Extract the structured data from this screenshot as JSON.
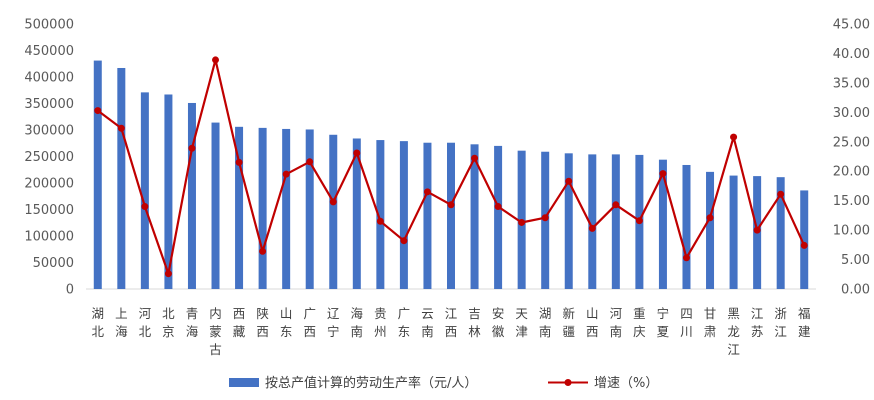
{
  "chart_data": {
    "type": "bar",
    "categories": [
      "湖北",
      "上海",
      "河北",
      "北京",
      "青海",
      "内蒙古",
      "西藏",
      "陕西",
      "山东",
      "广西",
      "辽宁",
      "海南",
      "贵州",
      "广东",
      "云南",
      "江西",
      "吉林",
      "安徽",
      "天津",
      "湖南",
      "新疆",
      "山西",
      "河南",
      "重庆",
      "宁夏",
      "四川",
      "甘肃",
      "黑龙江",
      "江苏",
      "浙江",
      "福建"
    ],
    "series": [
      {
        "name": "按总产值计算的劳动生产率（元/人）",
        "kind": "bar",
        "axis": "left",
        "color": "#4472C4",
        "values": [
          431000,
          417000,
          371000,
          367000,
          351000,
          314000,
          306000,
          304000,
          302000,
          301000,
          291000,
          284000,
          281000,
          279000,
          276000,
          276000,
          273000,
          270000,
          261000,
          259000,
          256000,
          254000,
          254000,
          253000,
          244000,
          234000,
          221000,
          214000,
          213000,
          211000,
          186000
        ]
      },
      {
        "name": "增速（%）",
        "kind": "line",
        "axis": "right",
        "color": "#C00000",
        "values": [
          30.3,
          27.3,
          14.0,
          2.6,
          23.9,
          38.9,
          21.5,
          6.4,
          19.5,
          21.6,
          14.8,
          23.1,
          11.5,
          8.2,
          16.5,
          14.3,
          22.2,
          14.0,
          11.3,
          12.1,
          18.3,
          10.3,
          14.3,
          11.6,
          19.6,
          5.3,
          12.1,
          25.8,
          10.0,
          16.1,
          7.4
        ]
      }
    ],
    "y_left": {
      "ylim": [
        0,
        500000
      ],
      "ticks": [
        "0",
        "50000",
        "100000",
        "150000",
        "200000",
        "250000",
        "300000",
        "350000",
        "400000",
        "450000",
        "500000"
      ]
    },
    "y_right": {
      "ylim": [
        0,
        45
      ],
      "ticks": [
        "0.00",
        "5.00",
        "10.00",
        "15.00",
        "20.00",
        "25.00",
        "30.00",
        "35.00",
        "40.00",
        "45.00"
      ]
    },
    "grid": false,
    "legend_position": "bottom"
  }
}
